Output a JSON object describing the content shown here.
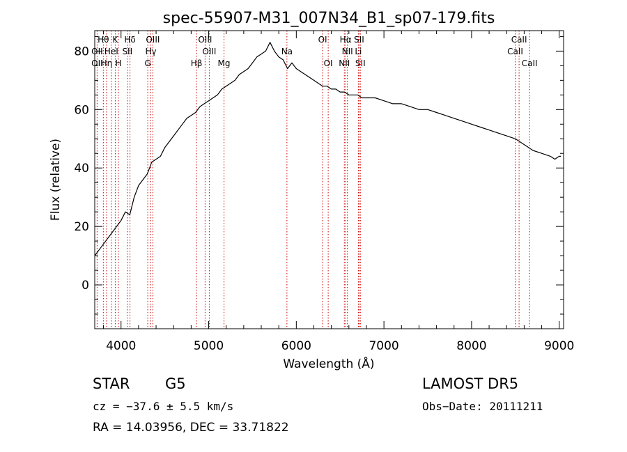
{
  "chart_data": {
    "type": "line",
    "title": "spec-55907-M31_007N34_B1_sp07-179.fits",
    "xlabel": "Wavelength (Å)",
    "ylabel": "Flux (relative)",
    "xlim": [
      3700,
      9050
    ],
    "ylim": [
      -15,
      87
    ],
    "x_ticks": [
      4000,
      5000,
      6000,
      7000,
      8000,
      9000
    ],
    "y_ticks": [
      0,
      20,
      40,
      60,
      80
    ],
    "grid": false,
    "series": [
      {
        "x": [
          3700,
          3750,
          3800,
          3850,
          3900,
          3950,
          4000,
          4050,
          4100,
          4150,
          4200,
          4250,
          4300,
          4350,
          4400,
          4450,
          4500,
          4550,
          4600,
          4650,
          4700,
          4750,
          4800,
          4850,
          4900,
          4950,
          5000,
          5050,
          5100,
          5150,
          5200,
          5250,
          5300,
          5350,
          5400,
          5450,
          5500,
          5550,
          5600,
          5650,
          5700,
          5750,
          5800,
          5850,
          5900,
          5950,
          6000,
          6050,
          6100,
          6150,
          6200,
          6250,
          6300,
          6350,
          6400,
          6450,
          6500,
          6550,
          6600,
          6650,
          6700,
          6750,
          6800,
          6900,
          7000,
          7100,
          7200,
          7300,
          7400,
          7500,
          7600,
          7700,
          7800,
          7900,
          8000,
          8100,
          8200,
          8300,
          8400,
          8500,
          8550,
          8600,
          8650,
          8700,
          8800,
          8900,
          8950,
          9000,
          9020
        ],
        "y": [
          10,
          12,
          14,
          16,
          18,
          20,
          22,
          25,
          24,
          30,
          34,
          36,
          38,
          42,
          43,
          44,
          47,
          49,
          51,
          53,
          55,
          57,
          58,
          59,
          61,
          62,
          63,
          64,
          65,
          67,
          68,
          69,
          70,
          72,
          73,
          74,
          76,
          78,
          79,
          80,
          83,
          80,
          78,
          77,
          74,
          76,
          74,
          73,
          72,
          71,
          70,
          69,
          68,
          68,
          67,
          67,
          66,
          66,
          65,
          65,
          65,
          64,
          64,
          64,
          63,
          62,
          62,
          61,
          60,
          60,
          59,
          58,
          57,
          56,
          55,
          54,
          53,
          52,
          51,
          50,
          49,
          48,
          47,
          46,
          45,
          44,
          43,
          44,
          44
        ]
      }
    ],
    "spectral_lines": [
      {
        "name": "Hθ",
        "wavelength": 3798,
        "row": 0
      },
      {
        "name": "K",
        "wavelength": 3934,
        "row": 0
      },
      {
        "name": "Hδ",
        "wavelength": 4102,
        "row": 0
      },
      {
        "name": "OIII",
        "wavelength": 4363,
        "row": 0
      },
      {
        "name": "OIII",
        "wavelength": 4959,
        "row": 0
      },
      {
        "name": "OI",
        "wavelength": 6300,
        "row": 0
      },
      {
        "name": "Hα",
        "wavelength": 6563,
        "row": 0
      },
      {
        "name": "SII",
        "wavelength": 6716,
        "row": 0
      },
      {
        "name": "CaII",
        "wavelength": 8542,
        "row": 0
      },
      {
        "name": "OII",
        "wavelength": 3727,
        "row": 1
      },
      {
        "name": "HeI",
        "wavelength": 3889,
        "row": 1
      },
      {
        "name": "SII",
        "wavelength": 4072,
        "row": 1
      },
      {
        "name": "Hγ",
        "wavelength": 4340,
        "row": 1
      },
      {
        "name": "OIII",
        "wavelength": 5007,
        "row": 1
      },
      {
        "name": "Na",
        "wavelength": 5893,
        "row": 1
      },
      {
        "name": "NII",
        "wavelength": 6583,
        "row": 1
      },
      {
        "name": "Li",
        "wavelength": 6708,
        "row": 1
      },
      {
        "name": "CaII",
        "wavelength": 8498,
        "row": 1
      },
      {
        "name": "OII",
        "wavelength": 3727,
        "row": 2
      },
      {
        "name": "Hη",
        "wavelength": 3835,
        "row": 2
      },
      {
        "name": "H",
        "wavelength": 3969,
        "row": 2
      },
      {
        "name": "G",
        "wavelength": 4305,
        "row": 2
      },
      {
        "name": "Hβ",
        "wavelength": 4861,
        "row": 2
      },
      {
        "name": "Mg",
        "wavelength": 5175,
        "row": 2
      },
      {
        "name": "OI",
        "wavelength": 6364,
        "row": 2
      },
      {
        "name": "NII",
        "wavelength": 6548,
        "row": 2
      },
      {
        "name": "SII",
        "wavelength": 6731,
        "row": 2
      },
      {
        "name": "CaII",
        "wavelength": 8662,
        "row": 2
      }
    ],
    "line_color": "#cc0000",
    "spectrum_color": "#000000"
  },
  "info": {
    "class": "STAR",
    "subclass": "G5",
    "survey": "LAMOST DR5",
    "cz": "cz = −37.6 ± 5.5 km/s",
    "obs_date": "Obs−Date: 20111211",
    "radec": "RA =  14.03956, DEC =  33.71822"
  }
}
